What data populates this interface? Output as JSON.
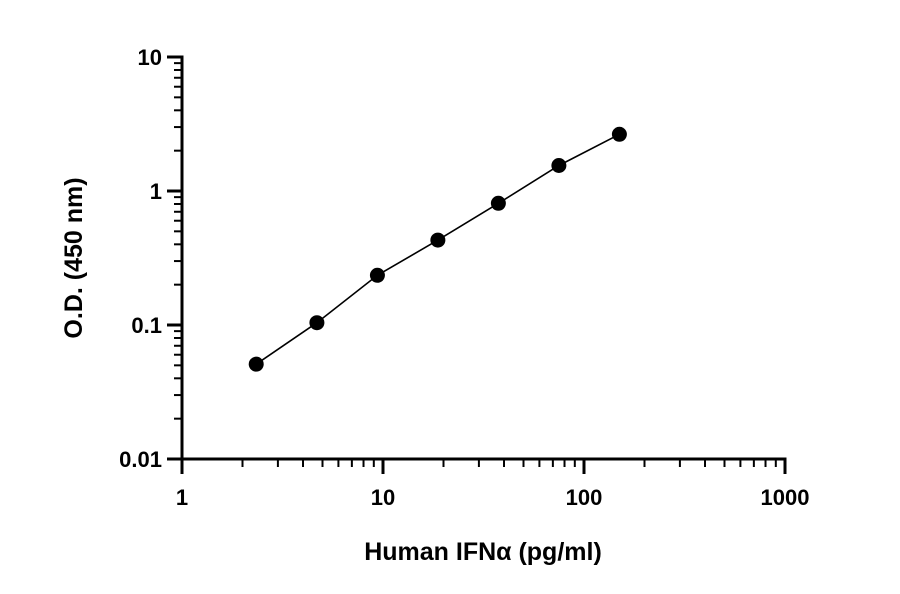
{
  "chart_data": {
    "type": "scatter",
    "title": "",
    "xlabel": "Human IFNα (pg/ml)",
    "ylabel": "O.D. (450 nm)",
    "x_scale": "log",
    "y_scale": "log",
    "xlim": [
      1,
      1000
    ],
    "ylim": [
      0.01,
      10
    ],
    "x_ticks": [
      {
        "value": 1,
        "label": "1"
      },
      {
        "value": 10,
        "label": "10"
      },
      {
        "value": 100,
        "label": "100"
      },
      {
        "value": 1000,
        "label": "1000"
      }
    ],
    "y_ticks": [
      {
        "value": 0.01,
        "label": "0.01"
      },
      {
        "value": 0.1,
        "label": "0.1"
      },
      {
        "value": 1,
        "label": "1"
      },
      {
        "value": 10,
        "label": "10"
      }
    ],
    "grid": false,
    "legend": "none",
    "fit_line": true,
    "series": [
      {
        "points": [
          {
            "x": 2.34,
            "y": 0.051
          },
          {
            "x": 4.69,
            "y": 0.104
          },
          {
            "x": 9.38,
            "y": 0.235
          },
          {
            "x": 18.75,
            "y": 0.43
          },
          {
            "x": 37.5,
            "y": 0.81
          },
          {
            "x": 75,
            "y": 1.55
          },
          {
            "x": 150,
            "y": 2.65
          }
        ]
      }
    ]
  }
}
